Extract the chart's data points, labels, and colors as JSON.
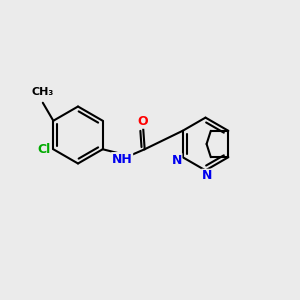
{
  "bg_color": "#ebebeb",
  "bond_color": "#000000",
  "bond_width": 1.5,
  "atom_colors": {
    "C": "#000000",
    "N": "#0000ee",
    "O": "#ff0000",
    "Cl": "#00aa00",
    "H": "#000000"
  },
  "font_size": 9,
  "small_font_size": 8,
  "xlim": [
    0,
    10
  ],
  "ylim": [
    0,
    10
  ]
}
